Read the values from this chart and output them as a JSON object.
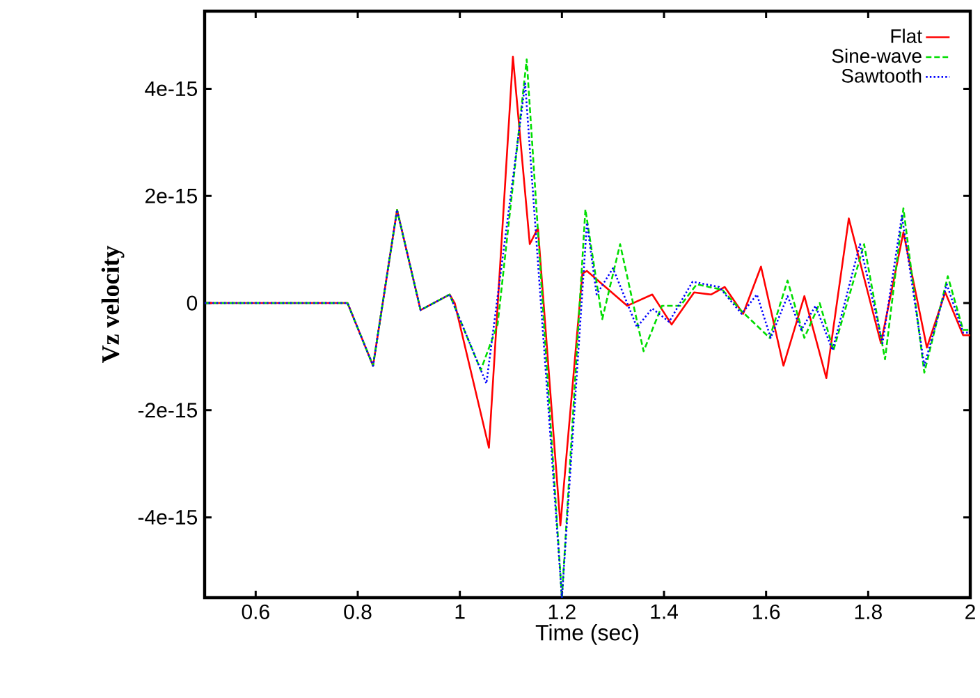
{
  "chart_data": {
    "type": "line",
    "xlabel": "Time (sec)",
    "ylabel": "Vz velocity",
    "xlim": [
      0.5,
      2
    ],
    "ylim": [
      -5.5e-15,
      5.45e-15
    ],
    "xticks": [
      0.6,
      0.8,
      1,
      1.2,
      1.4,
      1.6,
      1.8,
      2
    ],
    "yticks": [
      {
        "value": -4e-15,
        "label": "-4e-15"
      },
      {
        "value": -2e-15,
        "label": "-2e-15"
      },
      {
        "value": 0,
        "label": "0"
      },
      {
        "value": 2e-15,
        "label": "2e-15"
      },
      {
        "value": 4e-15,
        "label": "4e-15"
      }
    ],
    "legend": "top right",
    "grid": false,
    "series": [
      {
        "name": "Flat",
        "color": "#ff0000",
        "line_style": "solid",
        "x": [
          0.5,
          0.78,
          0.83,
          0.877,
          0.923,
          0.98,
          0.99,
          1.057,
          1.104,
          1.137,
          1.153,
          1.197,
          1.24,
          1.249,
          1.328,
          1.377,
          1.415,
          1.459,
          1.492,
          1.519,
          1.555,
          1.59,
          1.634,
          1.675,
          1.718,
          1.762,
          1.825,
          1.869,
          1.915,
          1.951,
          1.986,
          2
        ],
        "values": [
          0,
          0,
          -1.17e-15,
          1.74e-15,
          -1.3e-16,
          1.6e-16,
          0,
          -2.7e-15,
          4.6e-15,
          1.1e-15,
          1.4e-15,
          -4.15e-15,
          5.5e-16,
          6e-16,
          -5e-17,
          1.6e-16,
          -4e-16,
          2e-16,
          1.6e-16,
          3e-16,
          -2e-16,
          6.8e-16,
          -1.17e-15,
          1.3e-16,
          -1.4e-15,
          1.58e-15,
          -7.5e-16,
          1.32e-15,
          -8.3e-16,
          2e-16,
          -6e-16,
          -6e-16
        ]
      },
      {
        "name": "Sine-wave",
        "color": "#00dd00",
        "line_style": "dashed",
        "x": [
          0.5,
          0.78,
          0.83,
          0.877,
          0.923,
          0.98,
          1.041,
          1.074,
          1.131,
          1.2,
          1.246,
          1.279,
          1.314,
          1.36,
          1.396,
          1.432,
          1.464,
          1.514,
          1.552,
          1.607,
          1.642,
          1.675,
          1.705,
          1.732,
          1.792,
          1.833,
          1.869,
          1.91,
          1.956,
          1.986,
          2
        ],
        "values": [
          0,
          0,
          -1.17e-15,
          1.74e-15,
          -1.3e-16,
          1.6e-16,
          -1.25e-15,
          -4e-16,
          4.55e-15,
          -5.5e-15,
          1.75e-15,
          -3e-16,
          1.1e-15,
          -9e-16,
          -5e-17,
          -5e-17,
          3.5e-16,
          2.5e-16,
          -1.5e-16,
          -6.5e-16,
          4.2e-16,
          -6.5e-16,
          0,
          -8.8e-16,
          1.1e-15,
          -1.05e-15,
          1.77e-15,
          -1.3e-15,
          5e-16,
          -5e-16,
          -5e-16
        ]
      },
      {
        "name": "Sawtooth",
        "color": "#0000ff",
        "line_style": "dotted",
        "x": [
          0.5,
          0.78,
          0.83,
          0.877,
          0.923,
          0.98,
          1.052,
          1.128,
          1.2,
          1.249,
          1.268,
          1.3,
          1.347,
          1.377,
          1.41,
          1.456,
          1.508,
          1.552,
          1.582,
          1.609,
          1.642,
          1.669,
          1.697,
          1.73,
          1.784,
          1.828,
          1.866,
          1.91,
          1.954,
          1.986,
          2
        ],
        "values": [
          0,
          0,
          -1.17e-15,
          1.74e-15,
          -1.3e-16,
          1.6e-16,
          -1.5e-15,
          4.1e-15,
          -5.5e-15,
          1.5e-15,
          1.6e-16,
          6.5e-16,
          -4.5e-16,
          -1e-16,
          -3.5e-16,
          4e-16,
          3e-16,
          -2e-16,
          1.6e-16,
          -6.5e-16,
          1.3e-16,
          -5e-16,
          -5e-17,
          -8.8e-16,
          1.1e-15,
          -7.5e-16,
          1.63e-15,
          -1.17e-15,
          3.5e-16,
          -5.5e-16,
          -5.5e-16
        ]
      }
    ]
  }
}
